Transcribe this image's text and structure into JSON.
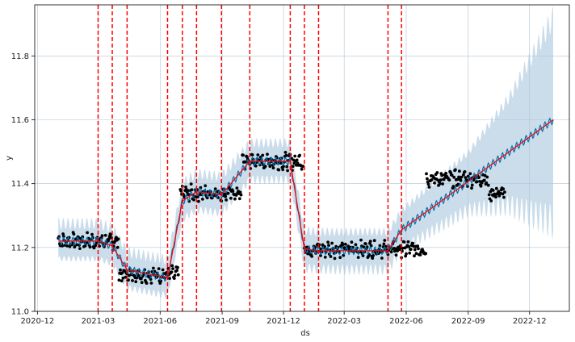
{
  "chart_data": {
    "type": "scatter",
    "title": "",
    "xlabel": "ds",
    "ylabel": "y",
    "x_range": [
      "2020-11-27",
      "2023-01-29"
    ],
    "ylim": [
      11.0,
      11.96
    ],
    "grid": true,
    "x_ticks": [
      {
        "date": "2020-12-01",
        "label": "2020-12"
      },
      {
        "date": "2021-03-01",
        "label": "2021-03"
      },
      {
        "date": "2021-06-01",
        "label": "2021-06"
      },
      {
        "date": "2021-09-01",
        "label": "2021-09"
      },
      {
        "date": "2021-12-01",
        "label": "2021-12"
      },
      {
        "date": "2022-03-01",
        "label": "2022-03"
      },
      {
        "date": "2022-06-01",
        "label": "2022-06"
      },
      {
        "date": "2022-09-01",
        "label": "2022-09"
      },
      {
        "date": "2022-12-01",
        "label": "2022-12"
      }
    ],
    "y_ticks": [
      {
        "value": 11.0,
        "label": "11.0"
      },
      {
        "value": 11.2,
        "label": "11.2"
      },
      {
        "value": 11.4,
        "label": "11.4"
      },
      {
        "value": 11.6,
        "label": "11.6"
      },
      {
        "value": 11.8,
        "label": "11.8"
      }
    ],
    "changepoints": [
      "2021-03-01",
      "2021-03-22",
      "2021-04-13",
      "2021-06-12",
      "2021-07-04",
      "2021-07-25",
      "2021-08-31",
      "2021-10-12",
      "2021-12-11",
      "2022-01-01",
      "2022-01-22",
      "2022-05-05",
      "2022-05-25"
    ],
    "trend": [
      {
        "x": "2021-01-01",
        "y": 11.22
      },
      {
        "x": "2021-03-01",
        "y": 11.22
      },
      {
        "x": "2021-03-22",
        "y": 11.205
      },
      {
        "x": "2021-04-13",
        "y": 11.13
      },
      {
        "x": "2021-06-12",
        "y": 11.105
      },
      {
        "x": "2021-07-04",
        "y": 11.345
      },
      {
        "x": "2021-07-25",
        "y": 11.375
      },
      {
        "x": "2021-08-31",
        "y": 11.365
      },
      {
        "x": "2021-10-12",
        "y": 11.47
      },
      {
        "x": "2021-12-11",
        "y": 11.47
      },
      {
        "x": "2022-01-01",
        "y": 11.195
      },
      {
        "x": "2022-01-22",
        "y": 11.19
      },
      {
        "x": "2022-05-05",
        "y": 11.19
      },
      {
        "x": "2022-05-25",
        "y": 11.255
      },
      {
        "x": "2023-01-05",
        "y": 11.6
      }
    ],
    "interval_halfwidth": [
      {
        "x": "2021-01-01",
        "w": 0.055
      },
      {
        "x": "2022-05-25",
        "w": 0.06
      },
      {
        "x": "2022-09-01",
        "w": 0.09
      },
      {
        "x": "2022-11-01",
        "w": 0.17
      },
      {
        "x": "2023-01-05",
        "w": 0.32
      }
    ],
    "observed_segments": [
      {
        "start": "2021-01-01",
        "end": "2021-03-31",
        "level": 11.22
      },
      {
        "start": "2021-04-01",
        "end": "2021-06-28",
        "level": 11.115
      },
      {
        "start": "2021-07-01",
        "end": "2021-09-29",
        "level": 11.37
      },
      {
        "start": "2021-10-01",
        "end": "2021-12-30",
        "level": 11.47
      },
      {
        "start": "2022-01-01",
        "end": "2022-03-31",
        "level": 11.195
      },
      {
        "start": "2022-04-01",
        "end": "2022-06-30",
        "level": 11.195
      },
      {
        "start": "2022-07-01",
        "end": "2022-09-29",
        "level": 11.415
      },
      {
        "start": "2022-10-01",
        "end": "2022-10-25",
        "level": 11.37
      }
    ],
    "colors": {
      "points": "#000000",
      "trend": "#0072B2",
      "interval": "#a9c6dc",
      "changepoint": "#ff0000",
      "trend_segments": "#ff0000",
      "grid": "#b0c4d4"
    }
  }
}
